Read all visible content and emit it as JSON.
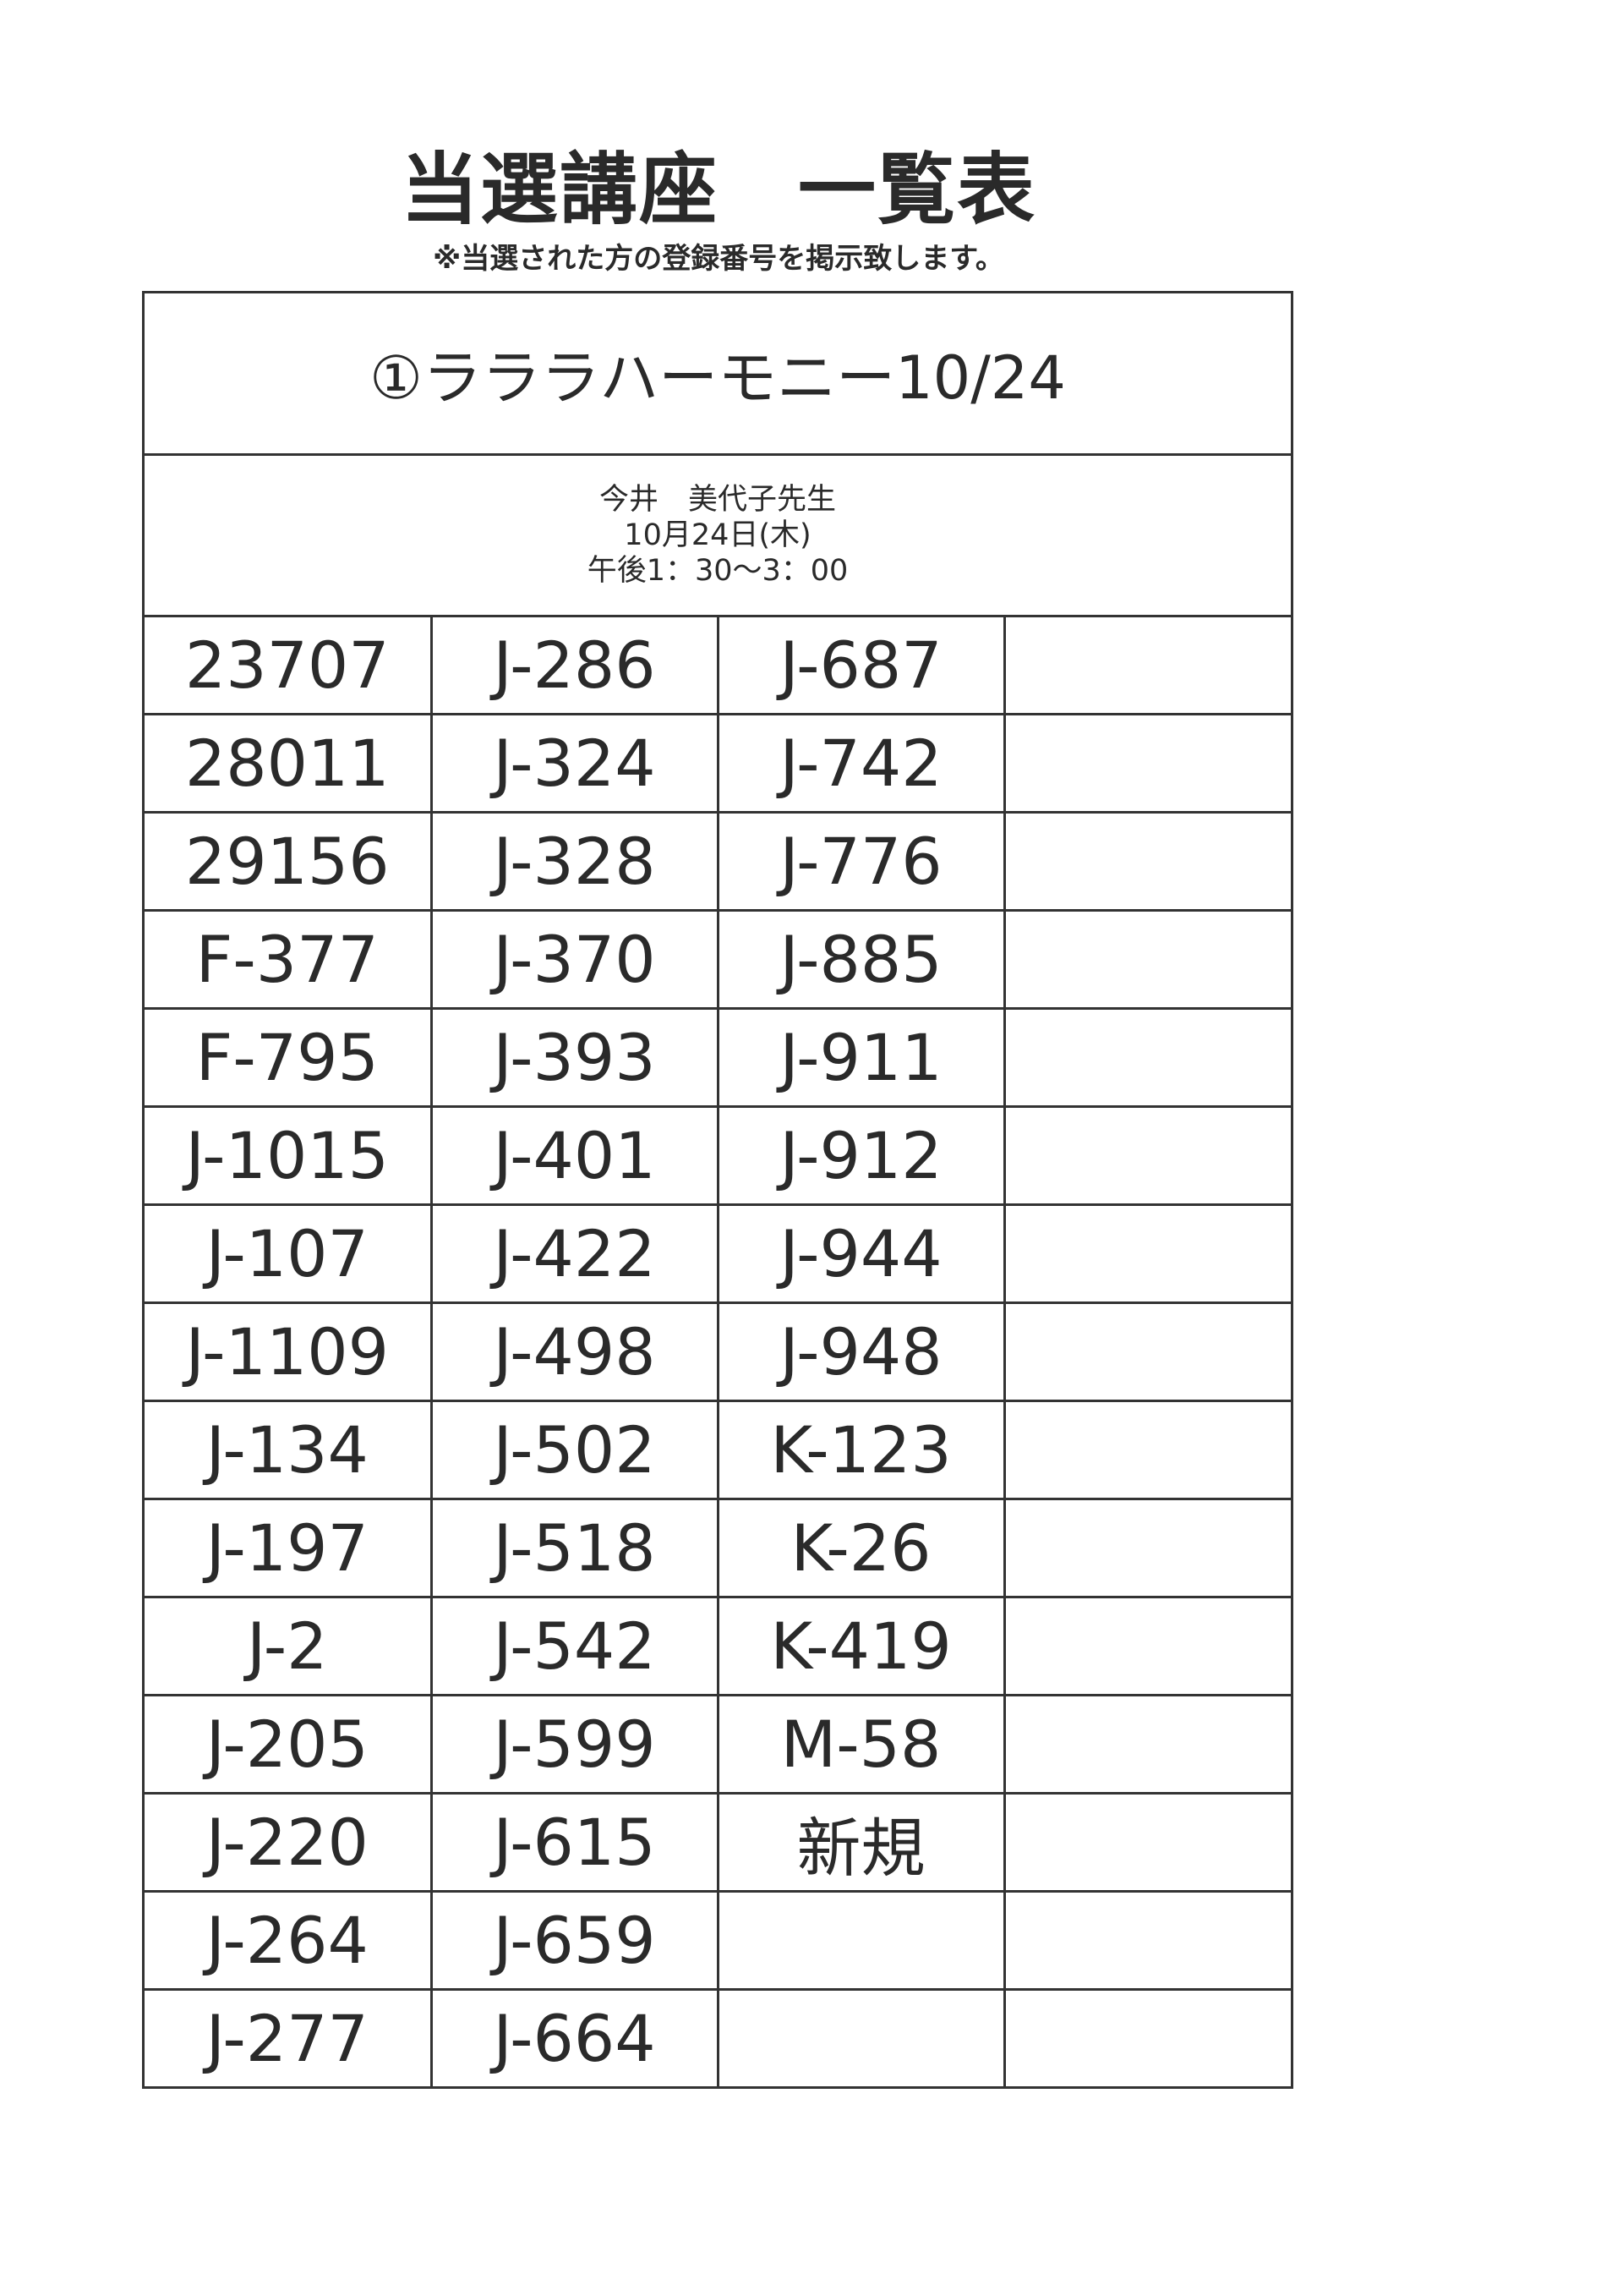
{
  "title": "当選講座　一覧表",
  "subtitle": "※当選された方の登録番号を掲示致します。",
  "course": {
    "name": "①ラララハーモニー10/24",
    "teacher": "今井　美代子先生",
    "date": "10月24日(木)",
    "time": "午後1：30～3：00"
  },
  "rows": [
    [
      "23707",
      "J-286",
      "J-687",
      ""
    ],
    [
      "28011",
      "J-324",
      "J-742",
      ""
    ],
    [
      "29156",
      "J-328",
      "J-776",
      ""
    ],
    [
      "F-377",
      "J-370",
      "J-885",
      ""
    ],
    [
      "F-795",
      "J-393",
      "J-911",
      ""
    ],
    [
      "J-1015",
      "J-401",
      "J-912",
      ""
    ],
    [
      "J-107",
      "J-422",
      "J-944",
      ""
    ],
    [
      "J-1109",
      "J-498",
      "J-948",
      ""
    ],
    [
      "J-134",
      "J-502",
      "K-123",
      ""
    ],
    [
      "J-197",
      "J-518",
      "K-26",
      ""
    ],
    [
      "J-2",
      "J-542",
      "K-419",
      ""
    ],
    [
      "J-205",
      "J-599",
      "M-58",
      ""
    ],
    [
      "J-220",
      "J-615",
      "新規",
      ""
    ],
    [
      "J-264",
      "J-659",
      "",
      ""
    ],
    [
      "J-277",
      "J-664",
      "",
      ""
    ]
  ]
}
